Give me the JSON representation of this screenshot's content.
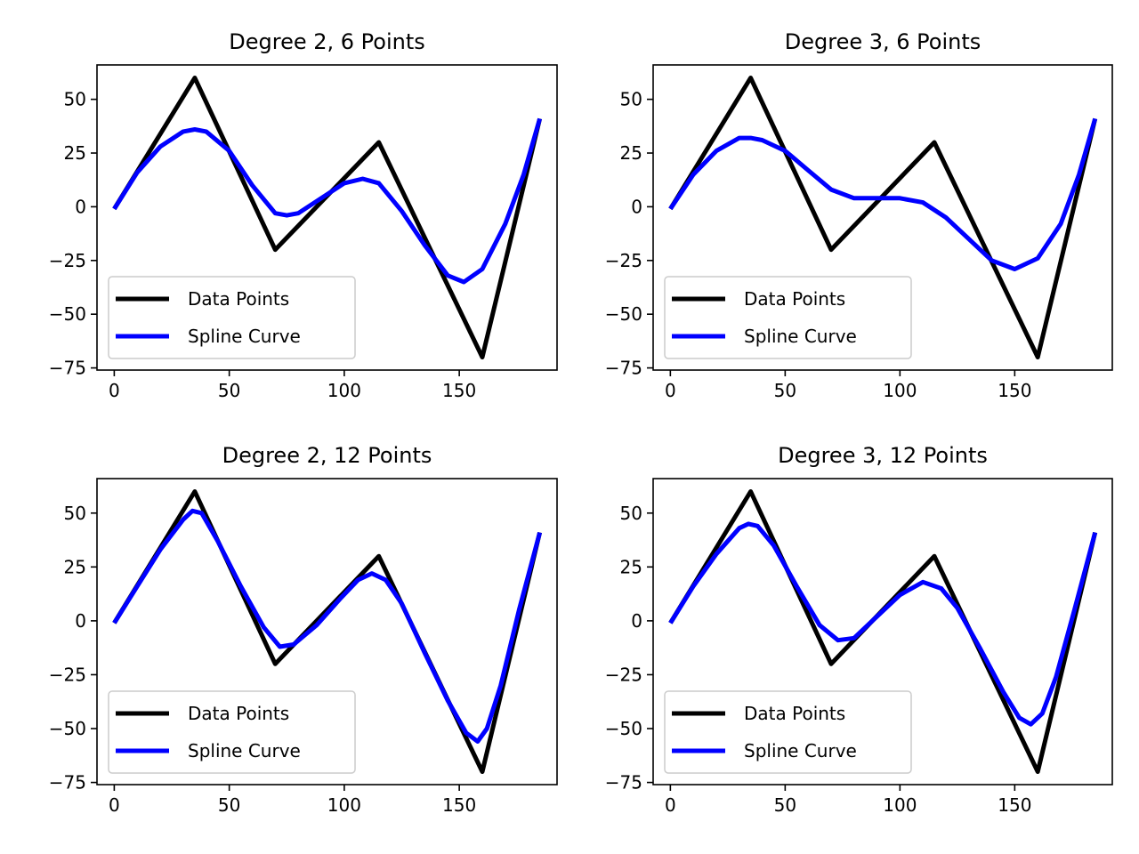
{
  "chart_data": [
    {
      "type": "line",
      "title": "Degree 2, 6 Points",
      "xlim": [
        -7.5,
        192.5
      ],
      "ylim": [
        -76,
        66
      ],
      "xticks": [
        0,
        50,
        100,
        150
      ],
      "yticks": [
        -75,
        -50,
        -25,
        0,
        25,
        50
      ],
      "legend": "lower-left",
      "series": [
        {
          "name": "Data Points",
          "color": "#000000",
          "x": [
            0,
            35,
            70,
            115,
            160,
            185
          ],
          "y": [
            -1,
            60,
            -20,
            30,
            -70,
            41
          ]
        },
        {
          "name": "Spline Curve",
          "color": "#0000ff",
          "x": [
            0,
            10,
            20,
            30,
            35,
            40,
            50,
            60,
            70,
            75,
            80,
            90,
            100,
            108,
            115,
            125,
            135,
            145,
            152,
            160,
            170,
            178,
            185
          ],
          "y": [
            -1,
            16,
            28,
            35,
            36,
            35,
            26,
            10,
            -3,
            -4,
            -3,
            4,
            11,
            13,
            11,
            -2,
            -18,
            -32,
            -35,
            -29,
            -8,
            15,
            41
          ]
        }
      ]
    },
    {
      "type": "line",
      "title": "Degree 3, 6 Points",
      "xlim": [
        -7.5,
        192.5
      ],
      "ylim": [
        -76,
        66
      ],
      "xticks": [
        0,
        50,
        100,
        150
      ],
      "yticks": [
        -75,
        -50,
        -25,
        0,
        25,
        50
      ],
      "legend": "lower-left",
      "series": [
        {
          "name": "Data Points",
          "color": "#000000",
          "x": [
            0,
            35,
            70,
            115,
            160,
            185
          ],
          "y": [
            -1,
            60,
            -20,
            30,
            -70,
            41
          ]
        },
        {
          "name": "Spline Curve",
          "color": "#0000ff",
          "x": [
            0,
            10,
            20,
            30,
            35,
            40,
            50,
            60,
            70,
            80,
            90,
            100,
            110,
            120,
            130,
            140,
            150,
            160,
            170,
            178,
            185
          ],
          "y": [
            -1,
            15,
            26,
            32,
            32,
            31,
            26,
            17,
            8,
            4,
            4,
            4,
            2,
            -5,
            -15,
            -25,
            -29,
            -24,
            -8,
            15,
            41
          ]
        }
      ]
    },
    {
      "type": "line",
      "title": "Degree 2, 12 Points",
      "xlim": [
        -7.5,
        192.5
      ],
      "ylim": [
        -76,
        66
      ],
      "xticks": [
        0,
        50,
        100,
        150
      ],
      "yticks": [
        -75,
        -50,
        -25,
        0,
        25,
        50
      ],
      "legend": "lower-left",
      "series": [
        {
          "name": "Data Points",
          "color": "#000000",
          "x": [
            0,
            35,
            70,
            115,
            160,
            185
          ],
          "y": [
            -1,
            60,
            -20,
            30,
            -70,
            41
          ]
        },
        {
          "name": "Spline Curve",
          "color": "#0000ff",
          "x": [
            0,
            10,
            20,
            30,
            34,
            38,
            45,
            55,
            65,
            72,
            78,
            88,
            98,
            106,
            112,
            118,
            125,
            135,
            145,
            153,
            158,
            162,
            168,
            176,
            185
          ],
          "y": [
            -1,
            16,
            33,
            47,
            51,
            50,
            37,
            16,
            -3,
            -12,
            -11,
            -2,
            10,
            19,
            22,
            19,
            8,
            -15,
            -37,
            -52,
            -56,
            -50,
            -30,
            5,
            41
          ]
        }
      ]
    },
    {
      "type": "line",
      "title": "Degree 3, 12 Points",
      "xlim": [
        -7.5,
        192.5
      ],
      "ylim": [
        -76,
        66
      ],
      "xticks": [
        0,
        50,
        100,
        150
      ],
      "yticks": [
        -75,
        -50,
        -25,
        0,
        25,
        50
      ],
      "legend": "lower-left",
      "series": [
        {
          "name": "Data Points",
          "color": "#000000",
          "x": [
            0,
            35,
            70,
            115,
            160,
            185
          ],
          "y": [
            -1,
            60,
            -20,
            30,
            -70,
            41
          ]
        },
        {
          "name": "Spline Curve",
          "color": "#0000ff",
          "x": [
            0,
            10,
            20,
            30,
            34,
            38,
            45,
            55,
            65,
            73,
            80,
            90,
            100,
            110,
            118,
            125,
            135,
            145,
            152,
            157,
            162,
            168,
            176,
            185
          ],
          "y": [
            -1,
            16,
            31,
            43,
            45,
            44,
            35,
            16,
            -2,
            -9,
            -8,
            2,
            12,
            18,
            15,
            6,
            -13,
            -33,
            -45,
            -48,
            -43,
            -26,
            5,
            41
          ]
        }
      ]
    }
  ]
}
